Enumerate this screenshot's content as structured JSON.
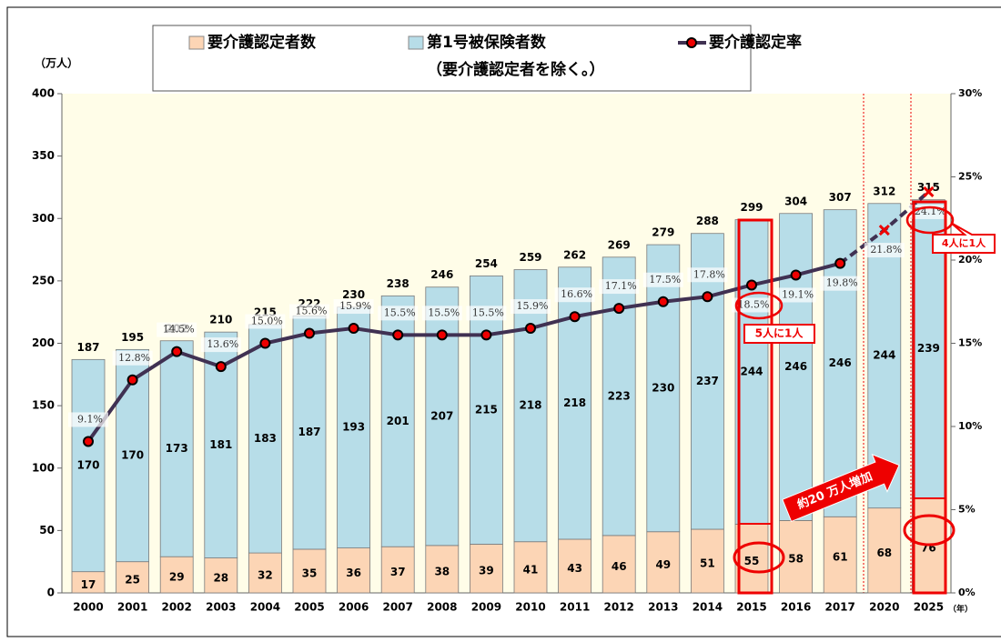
{
  "chart_data": {
    "type": "bar",
    "unit_label": "（万人）",
    "x_suffix": "（年）",
    "categories": [
      "2000",
      "2001",
      "2002",
      "2003",
      "2004",
      "2005",
      "2006",
      "2007",
      "2008",
      "2009",
      "2010",
      "2011",
      "2012",
      "2013",
      "2014",
      "2015",
      "2016",
      "2017",
      "2020",
      "2025"
    ],
    "series": [
      {
        "name": "要介護認定者数",
        "color": "#fcd5b5",
        "values": [
          17,
          25,
          29,
          28,
          32,
          35,
          36,
          37,
          38,
          39,
          41,
          43,
          46,
          49,
          51,
          55,
          58,
          61,
          68,
          76
        ]
      },
      {
        "name": "第1号被保険者数",
        "note": "（要介護認定者を除く。）",
        "color": "#b7dde8",
        "values": [
          170,
          170,
          173,
          181,
          183,
          187,
          193,
          201,
          207,
          215,
          218,
          218,
          223,
          230,
          237,
          244,
          246,
          246,
          244,
          239
        ]
      },
      {
        "name": "要介護認定率",
        "type": "line",
        "axis": "y2",
        "color": "#403152",
        "values": [
          9.1,
          12.8,
          14.5,
          13.6,
          15.0,
          15.6,
          15.9,
          15.5,
          15.5,
          15.5,
          15.9,
          16.6,
          17.1,
          17.5,
          17.8,
          18.5,
          19.1,
          19.8,
          21.8,
          24.1
        ],
        "value_labels": [
          "9.1%",
          "12.8%",
          "14.5%",
          "13.6%",
          "15.0%",
          "15.6%",
          "15.9%",
          "15.5%",
          "15.5%",
          "15.5%",
          "15.9%",
          "16.6%",
          "17.1%",
          "17.5%",
          "17.8%",
          "18.5%",
          "19.1%",
          "19.8%",
          "21.8%",
          "24.1%"
        ]
      }
    ],
    "totals": [
      187,
      195,
      202,
      210,
      215,
      222,
      230,
      238,
      246,
      254,
      259,
      262,
      269,
      279,
      288,
      299,
      304,
      307,
      312,
      315
    ],
    "ylim": [
      0,
      400
    ],
    "yticks": [
      0,
      50,
      100,
      150,
      200,
      250,
      300,
      350,
      400
    ],
    "y2lim": [
      0,
      30
    ],
    "y2ticks": [
      {
        "value": 0,
        "label": "0%"
      },
      {
        "value": 5,
        "label": "5%"
      },
      {
        "value": 10,
        "label": "10%"
      },
      {
        "value": 15,
        "label": "15%"
      },
      {
        "value": 20,
        "label": "20%"
      },
      {
        "value": 25,
        "label": "25%"
      },
      {
        "value": 30,
        "label": "30%"
      }
    ],
    "annotations": [
      "5人に1人",
      "4人に1人",
      "約20 万人増加"
    ]
  }
}
